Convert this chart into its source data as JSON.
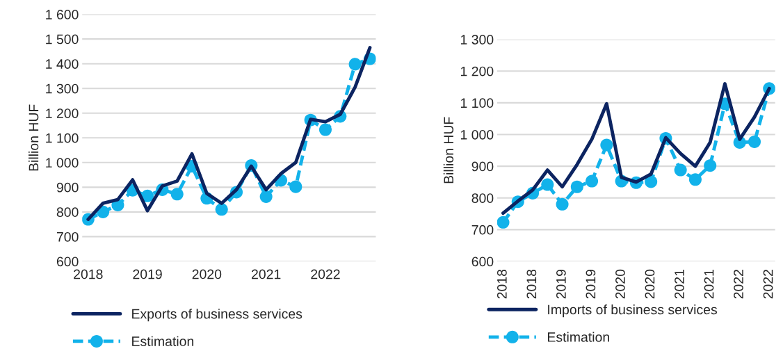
{
  "chart_data": [
    {
      "type": "line",
      "ylabel": "Billion HUF",
      "categories": [
        "2018",
        null,
        null,
        null,
        "2019",
        null,
        null,
        null,
        "2020",
        null,
        null,
        null,
        "2021",
        null,
        null,
        null,
        "2022",
        null,
        null,
        null
      ],
      "ylim": [
        600,
        1600
      ],
      "yticks": [
        {
          "value": 600,
          "label": "600"
        },
        {
          "value": 700,
          "label": "700"
        },
        {
          "value": 800,
          "label": "800"
        },
        {
          "value": 900,
          "label": "900"
        },
        {
          "value": 1000,
          "label": "1 000"
        },
        {
          "value": 1100,
          "label": "1 100"
        },
        {
          "value": 1200,
          "label": "1 200"
        },
        {
          "value": 1300,
          "label": "1 300"
        },
        {
          "value": 1400,
          "label": "1 400"
        },
        {
          "value": 1500,
          "label": "1 500"
        },
        {
          "value": 1600,
          "label": "1 600"
        }
      ],
      "grid": "y",
      "legend": "bottom",
      "series": [
        {
          "name": "Exports of business services",
          "color": "#0c2461",
          "marker": "none",
          "line_style": "solid",
          "values": [
            770,
            835,
            850,
            930,
            805,
            905,
            925,
            1035,
            875,
            835,
            890,
            985,
            890,
            955,
            1000,
            1175,
            1165,
            1195,
            1305,
            1465
          ]
        },
        {
          "name": "Estimation",
          "color": "#12b2ea",
          "marker": "circle",
          "line_style": "dashed",
          "values": [
            770,
            800,
            828,
            888,
            865,
            890,
            872,
            985,
            855,
            810,
            880,
            988,
            862,
            928,
            902,
            1172,
            1133,
            1187,
            1398,
            1420
          ]
        }
      ]
    },
    {
      "type": "line",
      "ylabel": "Billion HUF",
      "categories": [
        "2018",
        null,
        "2018",
        null,
        "2019",
        null,
        "2019",
        null,
        "2020",
        null,
        "2020",
        null,
        "2021",
        null,
        "2021",
        null,
        "2022",
        null,
        "2022"
      ],
      "ylim": [
        600,
        1300
      ],
      "yticks": [
        {
          "value": 600,
          "label": "600"
        },
        {
          "value": 700,
          "label": "700"
        },
        {
          "value": 800,
          "label": "800"
        },
        {
          "value": 900,
          "label": "900"
        },
        {
          "value": 1000,
          "label": "1 000"
        },
        {
          "value": 1100,
          "label": "1 100"
        },
        {
          "value": 1200,
          "label": "1 200"
        },
        {
          "value": 1300,
          "label": "1 300"
        }
      ],
      "grid": "y",
      "legend": "bottom",
      "series": [
        {
          "name": "Imports of business services",
          "color": "#0c2461",
          "marker": "none",
          "line_style": "solid",
          "values": [
            752,
            790,
            825,
            888,
            835,
            905,
            985,
            1097,
            865,
            850,
            875,
            990,
            940,
            900,
            975,
            1160,
            985,
            1055,
            1145
          ]
        },
        {
          "name": "Estimation",
          "color": "#12b2ea",
          "marker": "circle",
          "line_style": "dashed",
          "values": [
            723,
            788,
            815,
            842,
            780,
            835,
            853,
            967,
            853,
            848,
            851,
            988,
            888,
            858,
            902,
            1097,
            975,
            977,
            1145
          ]
        }
      ]
    }
  ]
}
